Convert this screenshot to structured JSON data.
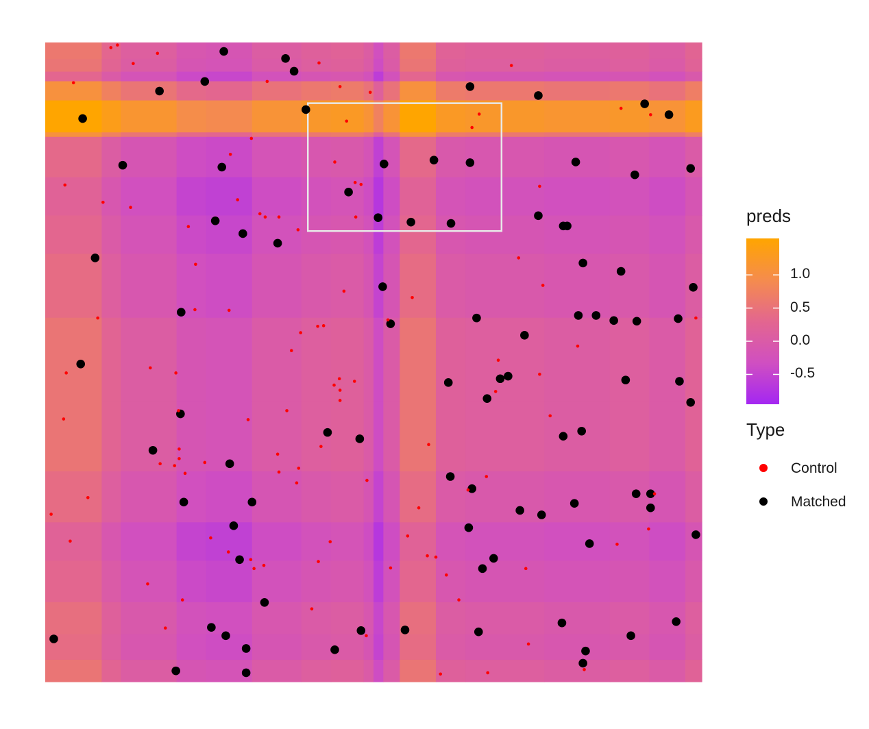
{
  "chart_data": {
    "type": "heatmap",
    "title": "",
    "xlabel": "",
    "ylabel": "",
    "xlim": [
      0,
      1
    ],
    "ylim": [
      0,
      1
    ],
    "grid": false,
    "heatmap": {
      "column_breaks": [
        0,
        0.086,
        0.115,
        0.2,
        0.245,
        0.315,
        0.39,
        0.435,
        0.485,
        0.5,
        0.515,
        0.54,
        0.595,
        0.64,
        0.76,
        0.86,
        0.92,
        0.975,
        1
      ],
      "column_values": [
        0.45,
        0.15,
        -0.05,
        -0.25,
        -0.3,
        -0.1,
        0.0,
        0.05,
        -0.1,
        -0.45,
        -0.1,
        0.45,
        0.05,
        0.0,
        -0.05,
        0.0,
        -0.1,
        0.1
      ],
      "row_breaks": [
        0,
        0.035,
        0.075,
        0.125,
        0.19,
        0.25,
        0.33,
        0.44,
        0.57,
        0.67,
        0.73,
        0.79,
        0.853,
        0.86,
        0.91,
        0.94,
        0.955,
        0.975,
        1
      ],
      "row_values": [
        0.1,
        -0.05,
        0.0,
        -0.15,
        -0.25,
        -0.05,
        0.1,
        0.1,
        -0.05,
        -0.15,
        -0.25,
        -0.1,
        0.6,
        1.2,
        0.6,
        -0.15,
        0.1,
        0.15
      ],
      "fill_scale": {
        "domain": [
          -0.95,
          1.55
        ],
        "colors": [
          "#a427f2",
          "#d04fc1",
          "#e3668f",
          "#f58c4d",
          "#ffa500"
        ]
      }
    },
    "highlight_box": {
      "x": [
        0.4,
        0.695
      ],
      "y": [
        0.705,
        0.905
      ],
      "color": "#e8e8e8"
    },
    "legend": {
      "placement": "right",
      "fill": {
        "title": "preds",
        "breaks": [
          1.0,
          0.5,
          0.0,
          -0.5
        ],
        "labels": [
          "1.0",
          "0.5",
          "0.0",
          "-0.5"
        ]
      },
      "type": {
        "title": "Type",
        "entries": [
          {
            "label": "Control",
            "color": "#ff0000"
          },
          {
            "label": "Matched",
            "color": "#000000"
          }
        ]
      }
    },
    "series": [
      {
        "name": "Matched",
        "color": "#000000",
        "points": [
          [
            0.272,
            0.986
          ],
          [
            0.366,
            0.975
          ],
          [
            0.379,
            0.955
          ],
          [
            0.174,
            0.924
          ],
          [
            0.243,
            0.939
          ],
          [
            0.647,
            0.931
          ],
          [
            0.751,
            0.917
          ],
          [
            0.397,
            0.895
          ],
          [
            0.057,
            0.881
          ],
          [
            0.913,
            0.904
          ],
          [
            0.95,
            0.887
          ],
          [
            0.118,
            0.808
          ],
          [
            0.269,
            0.805
          ],
          [
            0.516,
            0.81
          ],
          [
            0.592,
            0.816
          ],
          [
            0.647,
            0.812
          ],
          [
            0.808,
            0.813
          ],
          [
            0.983,
            0.803
          ],
          [
            0.898,
            0.793
          ],
          [
            0.462,
            0.766
          ],
          [
            0.259,
            0.721
          ],
          [
            0.507,
            0.726
          ],
          [
            0.557,
            0.719
          ],
          [
            0.618,
            0.717
          ],
          [
            0.751,
            0.729
          ],
          [
            0.789,
            0.713
          ],
          [
            0.795,
            0.713
          ],
          [
            0.301,
            0.701
          ],
          [
            0.354,
            0.686
          ],
          [
            0.076,
            0.663
          ],
          [
            0.819,
            0.655
          ],
          [
            0.877,
            0.642
          ],
          [
            0.514,
            0.618
          ],
          [
            0.987,
            0.617
          ],
          [
            0.207,
            0.578
          ],
          [
            0.657,
            0.569
          ],
          [
            0.526,
            0.56
          ],
          [
            0.812,
            0.573
          ],
          [
            0.839,
            0.573
          ],
          [
            0.866,
            0.565
          ],
          [
            0.901,
            0.564
          ],
          [
            0.964,
            0.568
          ],
          [
            0.73,
            0.542
          ],
          [
            0.054,
            0.497
          ],
          [
            0.614,
            0.468
          ],
          [
            0.693,
            0.474
          ],
          [
            0.705,
            0.478
          ],
          [
            0.884,
            0.472
          ],
          [
            0.966,
            0.47
          ],
          [
            0.983,
            0.437
          ],
          [
            0.673,
            0.443
          ],
          [
            0.206,
            0.419
          ],
          [
            0.43,
            0.39
          ],
          [
            0.479,
            0.38
          ],
          [
            0.789,
            0.384
          ],
          [
            0.817,
            0.392
          ],
          [
            0.164,
            0.362
          ],
          [
            0.281,
            0.341
          ],
          [
            0.617,
            0.321
          ],
          [
            0.65,
            0.302
          ],
          [
            0.211,
            0.281
          ],
          [
            0.315,
            0.281
          ],
          [
            0.9,
            0.294
          ],
          [
            0.922,
            0.294
          ],
          [
            0.922,
            0.272
          ],
          [
            0.806,
            0.279
          ],
          [
            0.723,
            0.268
          ],
          [
            0.756,
            0.261
          ],
          [
            0.645,
            0.241
          ],
          [
            0.991,
            0.23
          ],
          [
            0.287,
            0.244
          ],
          [
            0.829,
            0.216
          ],
          [
            0.666,
            0.177
          ],
          [
            0.683,
            0.193
          ],
          [
            0.296,
            0.191
          ],
          [
            0.334,
            0.124
          ],
          [
            0.013,
            0.067
          ],
          [
            0.253,
            0.085
          ],
          [
            0.275,
            0.072
          ],
          [
            0.481,
            0.08
          ],
          [
            0.548,
            0.081
          ],
          [
            0.66,
            0.078
          ],
          [
            0.787,
            0.092
          ],
          [
            0.892,
            0.072
          ],
          [
            0.961,
            0.094
          ],
          [
            0.306,
            0.052
          ],
          [
            0.441,
            0.05
          ],
          [
            0.823,
            0.048
          ],
          [
            0.819,
            0.029
          ],
          [
            0.199,
            0.017
          ],
          [
            0.306,
            0.014
          ]
        ]
      },
      {
        "name": "Control",
        "color": "#ff0000",
        "points": [
          [
            0.1,
            0.992
          ],
          [
            0.11,
            0.996
          ],
          [
            0.171,
            0.983
          ],
          [
            0.134,
            0.967
          ],
          [
            0.417,
            0.968
          ],
          [
            0.71,
            0.964
          ],
          [
            0.043,
            0.937
          ],
          [
            0.338,
            0.939
          ],
          [
            0.449,
            0.931
          ],
          [
            0.495,
            0.922
          ],
          [
            0.877,
            0.897
          ],
          [
            0.922,
            0.887
          ],
          [
            0.661,
            0.888
          ],
          [
            0.459,
            0.877
          ],
          [
            0.65,
            0.867
          ],
          [
            0.314,
            0.85
          ],
          [
            0.282,
            0.825
          ],
          [
            0.441,
            0.813
          ],
          [
            0.753,
            0.775
          ],
          [
            0.472,
            0.781
          ],
          [
            0.481,
            0.778
          ],
          [
            0.03,
            0.777
          ],
          [
            0.088,
            0.75
          ],
          [
            0.293,
            0.754
          ],
          [
            0.13,
            0.742
          ],
          [
            0.327,
            0.732
          ],
          [
            0.335,
            0.727
          ],
          [
            0.356,
            0.727
          ],
          [
            0.473,
            0.727
          ],
          [
            0.218,
            0.712
          ],
          [
            0.385,
            0.707
          ],
          [
            0.229,
            0.653
          ],
          [
            0.721,
            0.663
          ],
          [
            0.758,
            0.62
          ],
          [
            0.455,
            0.611
          ],
          [
            0.559,
            0.601
          ],
          [
            0.228,
            0.582
          ],
          [
            0.28,
            0.581
          ],
          [
            0.08,
            0.569
          ],
          [
            0.522,
            0.566
          ],
          [
            0.415,
            0.556
          ],
          [
            0.424,
            0.557
          ],
          [
            0.991,
            0.569
          ],
          [
            0.389,
            0.546
          ],
          [
            0.811,
            0.525
          ],
          [
            0.375,
            0.518
          ],
          [
            0.69,
            0.503
          ],
          [
            0.032,
            0.483
          ],
          [
            0.16,
            0.491
          ],
          [
            0.199,
            0.483
          ],
          [
            0.471,
            0.47
          ],
          [
            0.448,
            0.474
          ],
          [
            0.44,
            0.464
          ],
          [
            0.753,
            0.481
          ],
          [
            0.449,
            0.456
          ],
          [
            0.686,
            0.454
          ],
          [
            0.449,
            0.44
          ],
          [
            0.368,
            0.424
          ],
          [
            0.203,
            0.424
          ],
          [
            0.769,
            0.416
          ],
          [
            0.028,
            0.411
          ],
          [
            0.309,
            0.41
          ],
          [
            0.584,
            0.371
          ],
          [
            0.42,
            0.368
          ],
          [
            0.204,
            0.364
          ],
          [
            0.354,
            0.356
          ],
          [
            0.204,
            0.349
          ],
          [
            0.243,
            0.343
          ],
          [
            0.197,
            0.338
          ],
          [
            0.175,
            0.341
          ],
          [
            0.386,
            0.334
          ],
          [
            0.356,
            0.328
          ],
          [
            0.213,
            0.326
          ],
          [
            0.383,
            0.311
          ],
          [
            0.672,
            0.321
          ],
          [
            0.49,
            0.315
          ],
          [
            0.644,
            0.3
          ],
          [
            0.928,
            0.294
          ],
          [
            0.065,
            0.288
          ],
          [
            0.009,
            0.262
          ],
          [
            0.569,
            0.272
          ],
          [
            0.919,
            0.239
          ],
          [
            0.038,
            0.22
          ],
          [
            0.252,
            0.225
          ],
          [
            0.434,
            0.219
          ],
          [
            0.552,
            0.228
          ],
          [
            0.871,
            0.215
          ],
          [
            0.313,
            0.191
          ],
          [
            0.279,
            0.203
          ],
          [
            0.333,
            0.182
          ],
          [
            0.318,
            0.177
          ],
          [
            0.416,
            0.188
          ],
          [
            0.526,
            0.178
          ],
          [
            0.582,
            0.197
          ],
          [
            0.595,
            0.195
          ],
          [
            0.611,
            0.167
          ],
          [
            0.732,
            0.177
          ],
          [
            0.156,
            0.153
          ],
          [
            0.209,
            0.128
          ],
          [
            0.63,
            0.128
          ],
          [
            0.406,
            0.114
          ],
          [
            0.183,
            0.084
          ],
          [
            0.489,
            0.072
          ],
          [
            0.736,
            0.059
          ],
          [
            0.674,
            0.014
          ],
          [
            0.821,
            0.019
          ],
          [
            0.602,
            0.012
          ]
        ]
      }
    ]
  }
}
